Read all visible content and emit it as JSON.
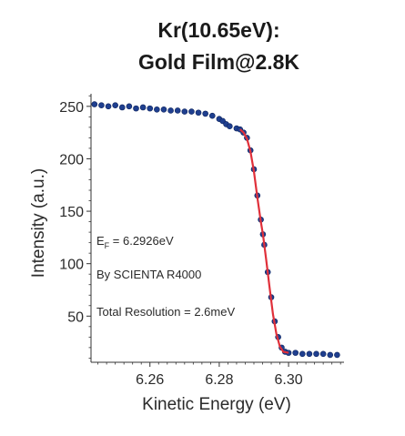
{
  "chart_data": {
    "type": "scatter",
    "title_line1": "Kr(10.65eV):",
    "title_line2": "Gold Film@2.8K",
    "xlabel": "Kinetic Energy (eV)",
    "ylabel": "Intensity (a.u.)",
    "xlim": [
      6.243,
      6.316
    ],
    "ylim": [
      6,
      262
    ],
    "xticks": [
      6.26,
      6.28,
      6.3
    ],
    "xtick_labels": [
      "6.26",
      "6.28",
      "6.30"
    ],
    "yticks": [
      50,
      100,
      150,
      200,
      250
    ],
    "ytick_labels": [
      "50",
      "100",
      "150",
      "200",
      "250"
    ],
    "grid": false,
    "annotations": {
      "ef_prefix": "E",
      "ef_sub": "F",
      "ef_value": " = 6.2926eV",
      "instrument": "By SCIENTA R4000",
      "resolution": "Total Resolution = 2.6meV"
    },
    "series": [
      {
        "marker_color": "#1f3f8f",
        "points": [
          [
            6.244,
            252
          ],
          [
            6.246,
            251
          ],
          [
            6.248,
            250
          ],
          [
            6.25,
            251
          ],
          [
            6.252,
            249
          ],
          [
            6.254,
            250
          ],
          [
            6.256,
            248
          ],
          [
            6.258,
            249
          ],
          [
            6.26,
            248
          ],
          [
            6.262,
            247
          ],
          [
            6.264,
            247
          ],
          [
            6.266,
            246
          ],
          [
            6.268,
            246
          ],
          [
            6.27,
            245
          ],
          [
            6.272,
            245
          ],
          [
            6.274,
            244
          ],
          [
            6.276,
            243
          ],
          [
            6.278,
            241
          ],
          [
            6.28,
            238
          ],
          [
            6.281,
            236
          ],
          [
            6.282,
            233
          ],
          [
            6.283,
            231
          ],
          [
            6.285,
            229
          ],
          [
            6.286,
            228
          ],
          [
            6.287,
            225
          ],
          [
            6.288,
            220
          ],
          [
            6.289,
            208
          ],
          [
            6.29,
            190
          ],
          [
            6.291,
            165
          ],
          [
            6.292,
            142
          ],
          [
            6.2926,
            128
          ],
          [
            6.293,
            118
          ],
          [
            6.294,
            92
          ],
          [
            6.295,
            68
          ],
          [
            6.296,
            45
          ],
          [
            6.297,
            30
          ],
          [
            6.298,
            20
          ],
          [
            6.299,
            16
          ],
          [
            6.3,
            15
          ],
          [
            6.302,
            15
          ],
          [
            6.304,
            14
          ],
          [
            6.306,
            14
          ],
          [
            6.308,
            14
          ],
          [
            6.31,
            14
          ],
          [
            6.312,
            13
          ],
          [
            6.314,
            13
          ]
        ]
      },
      {
        "line_color": "#e0303a",
        "points": [
          [
            6.286,
            228
          ],
          [
            6.287,
            225
          ],
          [
            6.288,
            219
          ],
          [
            6.289,
            207
          ],
          [
            6.29,
            188
          ],
          [
            6.291,
            163
          ],
          [
            6.292,
            140
          ],
          [
            6.2926,
            128
          ],
          [
            6.2935,
            105
          ],
          [
            6.2945,
            78
          ],
          [
            6.2955,
            52
          ],
          [
            6.2965,
            33
          ],
          [
            6.2975,
            21
          ],
          [
            6.2985,
            16
          ],
          [
            6.3,
            15
          ]
        ]
      }
    ]
  }
}
